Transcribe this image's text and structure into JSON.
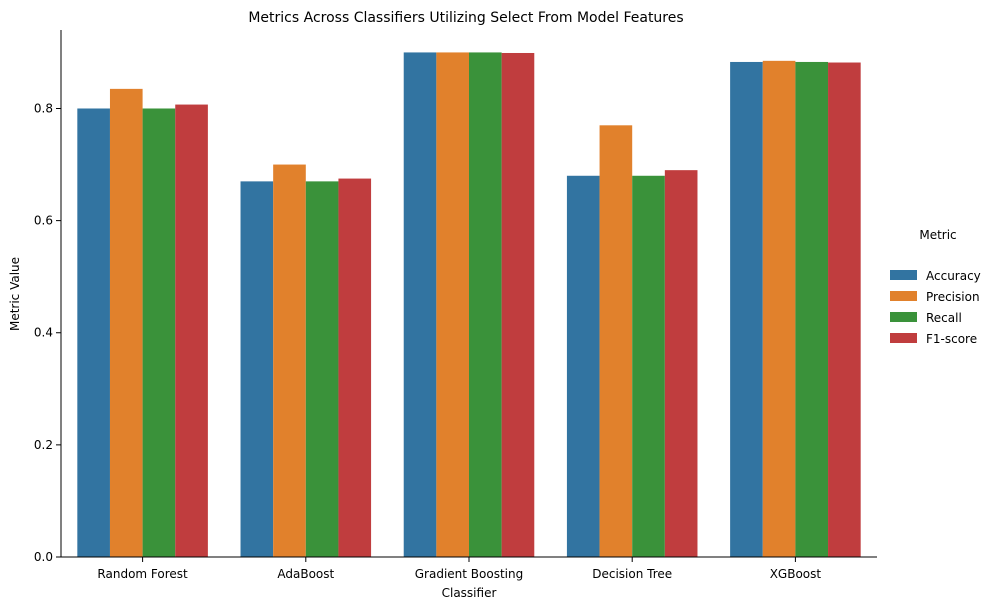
{
  "chart_data": {
    "type": "bar",
    "title": "Metrics Across Classifiers Utilizing Select From Model Features",
    "xlabel": "Classifier",
    "ylabel": "Metric Value",
    "categories": [
      "Random Forest",
      "AdaBoost",
      "Gradient Boosting",
      "Decision Tree",
      "XGBoost"
    ],
    "ylim": [
      0,
      0.94
    ],
    "yticks": [
      0.0,
      0.2,
      0.4,
      0.6,
      0.8
    ],
    "ytick_labels": [
      "0.0",
      "0.2",
      "0.4",
      "0.6",
      "0.8"
    ],
    "grid": false,
    "legend": {
      "title": "Metric",
      "placement": "right"
    },
    "series": [
      {
        "name": "Accuracy",
        "color": "#3274a1",
        "values": [
          0.8,
          0.67,
          0.9,
          0.68,
          0.883
        ]
      },
      {
        "name": "Precision",
        "color": "#e1812c",
        "values": [
          0.835,
          0.7,
          0.9,
          0.77,
          0.885
        ]
      },
      {
        "name": "Recall",
        "color": "#3a923a",
        "values": [
          0.8,
          0.67,
          0.9,
          0.68,
          0.883
        ]
      },
      {
        "name": "F1-score",
        "color": "#c03d3e",
        "values": [
          0.807,
          0.675,
          0.899,
          0.69,
          0.882
        ]
      }
    ]
  }
}
